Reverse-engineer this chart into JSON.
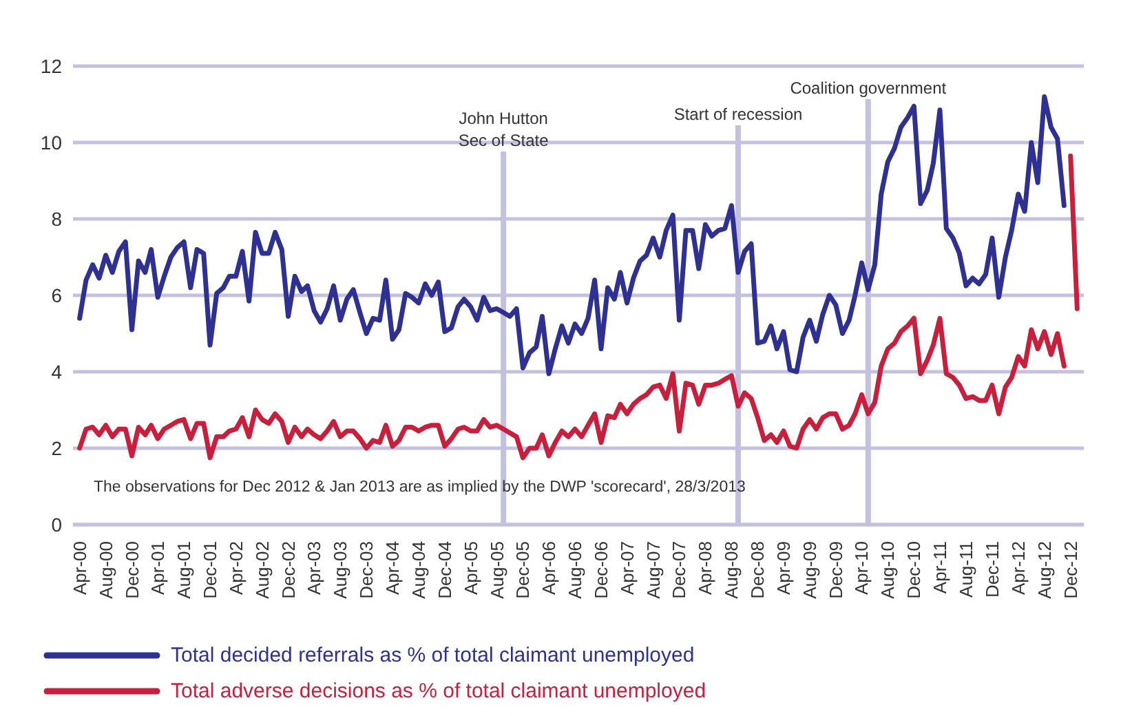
{
  "chart_data": {
    "type": "line",
    "x": [
      "2000-04",
      "2000-05",
      "2000-06",
      "2000-07",
      "2000-08",
      "2000-09",
      "2000-10",
      "2000-11",
      "2000-12",
      "2001-01",
      "2001-02",
      "2001-03",
      "2001-04",
      "2001-05",
      "2001-06",
      "2001-07",
      "2001-08",
      "2001-09",
      "2001-10",
      "2001-11",
      "2001-12",
      "2002-01",
      "2002-02",
      "2002-03",
      "2002-04",
      "2002-05",
      "2002-06",
      "2002-07",
      "2002-08",
      "2002-09",
      "2002-10",
      "2002-11",
      "2002-12",
      "2003-01",
      "2003-02",
      "2003-03",
      "2003-04",
      "2003-05",
      "2003-06",
      "2003-07",
      "2003-08",
      "2003-09",
      "2003-10",
      "2003-11",
      "2003-12",
      "2004-01",
      "2004-02",
      "2004-03",
      "2004-04",
      "2004-05",
      "2004-06",
      "2004-07",
      "2004-08",
      "2004-09",
      "2004-10",
      "2004-11",
      "2004-12",
      "2005-01",
      "2005-02",
      "2005-03",
      "2005-04",
      "2005-05",
      "2005-06",
      "2005-07",
      "2005-08",
      "2005-09",
      "2005-10",
      "2005-11",
      "2005-12",
      "2006-01",
      "2006-02",
      "2006-03",
      "2006-04",
      "2006-05",
      "2006-06",
      "2006-07",
      "2006-08",
      "2006-09",
      "2006-10",
      "2006-11",
      "2006-12",
      "2007-01",
      "2007-02",
      "2007-03",
      "2007-04",
      "2007-05",
      "2007-06",
      "2007-07",
      "2007-08",
      "2007-09",
      "2007-10",
      "2007-11",
      "2007-12",
      "2008-01",
      "2008-02",
      "2008-03",
      "2008-04",
      "2008-05",
      "2008-06",
      "2008-07",
      "2008-08",
      "2008-09",
      "2008-10",
      "2008-11",
      "2008-12",
      "2009-01",
      "2009-02",
      "2009-03",
      "2009-04",
      "2009-05",
      "2009-06",
      "2009-07",
      "2009-08",
      "2009-09",
      "2009-10",
      "2009-11",
      "2009-12",
      "2010-01",
      "2010-02",
      "2010-03",
      "2010-04",
      "2010-05",
      "2010-06",
      "2010-07",
      "2010-08",
      "2010-09",
      "2010-10",
      "2010-11",
      "2010-12",
      "2011-01",
      "2011-02",
      "2011-03",
      "2011-04",
      "2011-05",
      "2011-06",
      "2011-07",
      "2011-08",
      "2011-09",
      "2011-10",
      "2011-11",
      "2011-12",
      "2012-01",
      "2012-02",
      "2012-03",
      "2012-04",
      "2012-05",
      "2012-06",
      "2012-07",
      "2012-08",
      "2012-09",
      "2012-10",
      "2012-11"
    ],
    "series": [
      {
        "name": "Total decided referrals as % of total claimant unemployed",
        "color": "#2e3192",
        "values": [
          5.4,
          6.4,
          6.8,
          6.45,
          7.05,
          6.6,
          7.15,
          7.4,
          5.1,
          6.9,
          6.6,
          7.2,
          5.95,
          6.5,
          7.0,
          7.25,
          7.4,
          6.2,
          7.2,
          7.1,
          4.7,
          6.05,
          6.2,
          6.5,
          6.5,
          7.15,
          5.85,
          7.65,
          7.1,
          7.1,
          7.65,
          7.2,
          5.45,
          6.5,
          6.1,
          6.25,
          5.6,
          5.3,
          5.65,
          6.25,
          5.35,
          5.9,
          6.15,
          5.55,
          5.0,
          5.4,
          5.35,
          6.4,
          4.85,
          5.1,
          6.05,
          5.95,
          5.8,
          6.3,
          6.0,
          6.35,
          5.05,
          5.15,
          5.7,
          5.9,
          5.7,
          5.35,
          5.95,
          5.6,
          5.65,
          5.55,
          5.45,
          5.65,
          4.1,
          4.5,
          4.65,
          5.45,
          3.95,
          4.6,
          5.2,
          4.75,
          5.25,
          5.0,
          5.4,
          6.4,
          4.6,
          6.2,
          5.9,
          6.6,
          5.8,
          6.45,
          6.9,
          7.05,
          7.5,
          7.0,
          7.7,
          8.1,
          5.35,
          7.7,
          7.7,
          6.7,
          7.85,
          7.55,
          7.7,
          7.75,
          8.35,
          6.6,
          7.15,
          7.35,
          4.75,
          4.8,
          5.2,
          4.6,
          5.05,
          4.05,
          4.0,
          4.9,
          5.35,
          4.8,
          5.5,
          6.0,
          5.75,
          5.0,
          5.35,
          6.0,
          6.85,
          6.15,
          6.8,
          8.65,
          9.5,
          9.85,
          10.4,
          10.65,
          10.95,
          8.4,
          8.75,
          9.45,
          10.85,
          7.75,
          7.5,
          7.1,
          6.25,
          6.45,
          6.3,
          6.55,
          7.5,
          5.95,
          7.0,
          7.7,
          8.65,
          8.2,
          10.0,
          8.95,
          11.2,
          10.4,
          10.1,
          8.35
        ]
      },
      {
        "name": "Total adverse decisions as % of total claimant unemployed",
        "color": "#c8203c",
        "values": [
          2.0,
          2.5,
          2.55,
          2.35,
          2.6,
          2.3,
          2.5,
          2.5,
          1.8,
          2.55,
          2.35,
          2.6,
          2.25,
          2.5,
          2.6,
          2.7,
          2.75,
          2.25,
          2.65,
          2.65,
          1.75,
          2.3,
          2.3,
          2.45,
          2.5,
          2.8,
          2.3,
          3.0,
          2.75,
          2.65,
          2.9,
          2.7,
          2.15,
          2.55,
          2.3,
          2.5,
          2.35,
          2.25,
          2.45,
          2.7,
          2.3,
          2.45,
          2.45,
          2.25,
          2.0,
          2.2,
          2.15,
          2.6,
          2.05,
          2.2,
          2.55,
          2.55,
          2.45,
          2.55,
          2.6,
          2.6,
          2.05,
          2.25,
          2.5,
          2.55,
          2.45,
          2.45,
          2.75,
          2.55,
          2.6,
          2.5,
          2.4,
          2.3,
          1.75,
          2.0,
          2.0,
          2.35,
          1.8,
          2.15,
          2.45,
          2.3,
          2.5,
          2.3,
          2.6,
          2.9,
          2.15,
          2.85,
          2.8,
          3.15,
          2.9,
          3.15,
          3.3,
          3.4,
          3.6,
          3.65,
          3.3,
          3.95,
          2.45,
          3.7,
          3.65,
          3.15,
          3.65,
          3.65,
          3.7,
          3.8,
          3.9,
          3.1,
          3.45,
          3.3,
          2.8,
          2.2,
          2.35,
          2.15,
          2.45,
          2.05,
          2.0,
          2.5,
          2.75,
          2.5,
          2.8,
          2.9,
          2.9,
          2.5,
          2.6,
          2.9,
          3.4,
          2.9,
          3.2,
          4.15,
          4.6,
          4.75,
          5.05,
          5.2,
          5.4,
          3.95,
          4.3,
          4.7,
          5.4,
          3.95,
          3.85,
          3.65,
          3.3,
          3.35,
          3.25,
          3.25,
          3.65,
          2.9,
          3.6,
          3.85,
          4.4,
          4.15,
          5.1,
          4.6,
          5.05,
          4.45,
          5.0,
          4.15
        ]
      },
      {
        "color": "#c8203c",
        "x": [
          "2012-12",
          "2013-01"
        ],
        "values": [
          9.65,
          5.65
        ]
      }
    ],
    "xlim": [
      "2000-03",
      "2013-02"
    ],
    "xticks": [
      {
        "value": "2000-04",
        "label": "Apr-00"
      },
      {
        "value": "2000-08",
        "label": "Aug-00"
      },
      {
        "value": "2000-12",
        "label": "Dec-00"
      },
      {
        "value": "2001-04",
        "label": "Apr-01"
      },
      {
        "value": "2001-08",
        "label": "Aug-01"
      },
      {
        "value": "2001-12",
        "label": "Dec-01"
      },
      {
        "value": "2002-04",
        "label": "Apr-02"
      },
      {
        "value": "2002-08",
        "label": "Aug-02"
      },
      {
        "value": "2002-12",
        "label": "Dec-02"
      },
      {
        "value": "2003-04",
        "label": "Apr-03"
      },
      {
        "value": "2003-08",
        "label": "Aug-03"
      },
      {
        "value": "2003-12",
        "label": "Dec-03"
      },
      {
        "value": "2004-04",
        "label": "Apr-04"
      },
      {
        "value": "2004-08",
        "label": "Aug-04"
      },
      {
        "value": "2004-12",
        "label": "Dec-04"
      },
      {
        "value": "2005-04",
        "label": "Apr-05"
      },
      {
        "value": "2005-08",
        "label": "Aug-05"
      },
      {
        "value": "2005-12",
        "label": "Dec-05"
      },
      {
        "value": "2006-04",
        "label": "Apr-06"
      },
      {
        "value": "2006-08",
        "label": "Aug-06"
      },
      {
        "value": "2006-12",
        "label": "Dec-06"
      },
      {
        "value": "2007-04",
        "label": "Apr-07"
      },
      {
        "value": "2007-08",
        "label": "Aug-07"
      },
      {
        "value": "2007-12",
        "label": "Dec-07"
      },
      {
        "value": "2008-04",
        "label": "Apr-08"
      },
      {
        "value": "2008-08",
        "label": "Aug-08"
      },
      {
        "value": "2008-12",
        "label": "Dec-08"
      },
      {
        "value": "2009-04",
        "label": "Apr-09"
      },
      {
        "value": "2009-08",
        "label": "Aug-09"
      },
      {
        "value": "2009-12",
        "label": "Dec-09"
      },
      {
        "value": "2010-04",
        "label": "Apr-10"
      },
      {
        "value": "2010-08",
        "label": "Aug-10"
      },
      {
        "value": "2010-12",
        "label": "Dec-10"
      },
      {
        "value": "2011-04",
        "label": "Apr-11"
      },
      {
        "value": "2011-08",
        "label": "Aug-11"
      },
      {
        "value": "2011-12",
        "label": "Dec-11"
      },
      {
        "value": "2012-04",
        "label": "Apr-12"
      },
      {
        "value": "2012-08",
        "label": "Aug-12"
      },
      {
        "value": "2012-12",
        "label": "Dec-12"
      }
    ],
    "ylim": [
      0,
      12
    ],
    "yticks": [
      0,
      2,
      4,
      6,
      8,
      10,
      12
    ],
    "grid": "y",
    "legend": "bottom",
    "ref_lines": [
      {
        "axis": "x",
        "value": "2005-09",
        "label": "John Hutton\nSec of State",
        "color": "#c4c0e0"
      },
      {
        "axis": "x",
        "value": "2008-09",
        "label": "Start of recession",
        "color": "#c4c0e0"
      },
      {
        "axis": "x",
        "value": "2010-05",
        "label": "Coalition government",
        "color": "#c4c0e0"
      }
    ],
    "annotations": [
      "The observations for Dec 2012 & Jan 2013 are as implied by the DWP 'scorecard', 28/3/2013"
    ]
  }
}
